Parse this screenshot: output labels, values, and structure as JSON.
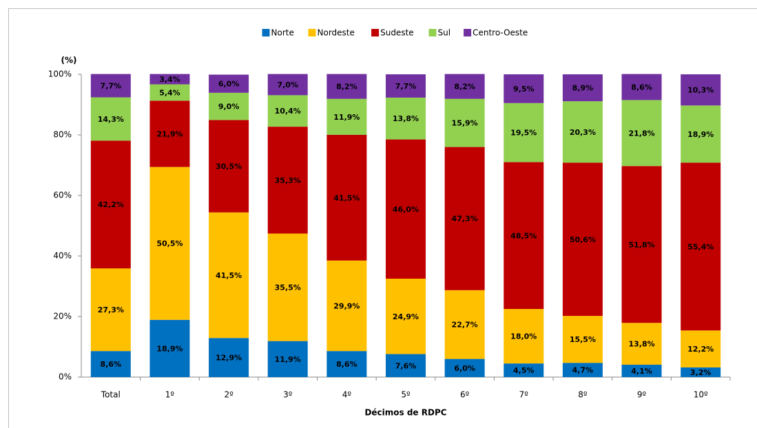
{
  "chart_data": {
    "type": "stacked_bar",
    "y_label": "(%)",
    "x_label": "Décimos de RDPC",
    "categories": [
      "Total",
      "1º",
      "2º",
      "3º",
      "4º",
      "5º",
      "6º",
      "7º",
      "8º",
      "9º",
      "10º"
    ],
    "series": [
      {
        "name": "Norte",
        "color": "#0070c0",
        "values": [
          8.6,
          18.9,
          12.9,
          11.9,
          8.6,
          7.6,
          6.0,
          4.5,
          4.7,
          4.1,
          3.2
        ],
        "value_labels": [
          "8,6%",
          "18,9%",
          "12,9%",
          "11,9%",
          "8,6%",
          "7,6%",
          "6,0%",
          "4,5%",
          "4,7%",
          "4,1%",
          "3,2%"
        ]
      },
      {
        "name": "Nordeste",
        "color": "#ffc000",
        "values": [
          27.3,
          50.5,
          41.5,
          35.5,
          29.9,
          24.9,
          22.7,
          18.0,
          15.5,
          13.8,
          12.2
        ],
        "value_labels": [
          "27,3%",
          "50,5%",
          "41,5%",
          "35,5%",
          "29,9%",
          "24,9%",
          "22,7%",
          "18,0%",
          "15,5%",
          "13,8%",
          "12,2%"
        ]
      },
      {
        "name": "Sudeste",
        "color": "#c00000",
        "values": [
          42.2,
          21.9,
          30.5,
          35.3,
          41.5,
          46.0,
          47.3,
          48.5,
          50.6,
          51.8,
          55.4
        ],
        "value_labels": [
          "42,2%",
          "21,9%",
          "30,5%",
          "35,3%",
          "41,5%",
          "46,0%",
          "47,3%",
          "48,5%",
          "50,6%",
          "51,8%",
          "55,4%"
        ]
      },
      {
        "name": "Sul",
        "color": "#92d050",
        "values": [
          14.3,
          5.4,
          9.0,
          10.4,
          11.9,
          13.8,
          15.9,
          19.5,
          20.3,
          21.8,
          18.9
        ],
        "value_labels": [
          "14,3%",
          "5,4%",
          "9,0%",
          "10,4%",
          "11,9%",
          "13,8%",
          "15,9%",
          "19,5%",
          "20,3%",
          "21,8%",
          "18,9%"
        ]
      },
      {
        "name": "Centro-Oeste",
        "color": "#7030a0",
        "values": [
          7.7,
          3.4,
          6.0,
          7.0,
          8.2,
          7.7,
          8.2,
          9.5,
          8.9,
          8.6,
          10.3
        ],
        "value_labels": [
          "7,7%",
          "3,4%",
          "6,0%",
          "7,0%",
          "8,2%",
          "7,7%",
          "8,2%",
          "9,5%",
          "8,9%",
          "8,6%",
          "10,3%"
        ]
      }
    ],
    "ylim": [
      0,
      100
    ],
    "yticks": [
      {
        "value": 0,
        "label": "0%"
      },
      {
        "value": 20,
        "label": "20%"
      },
      {
        "value": 40,
        "label": "40%"
      },
      {
        "value": 60,
        "label": "60%"
      },
      {
        "value": 80,
        "label": "80%"
      },
      {
        "value": 100,
        "label": "100%"
      }
    ],
    "grid": false,
    "legend": "top"
  }
}
